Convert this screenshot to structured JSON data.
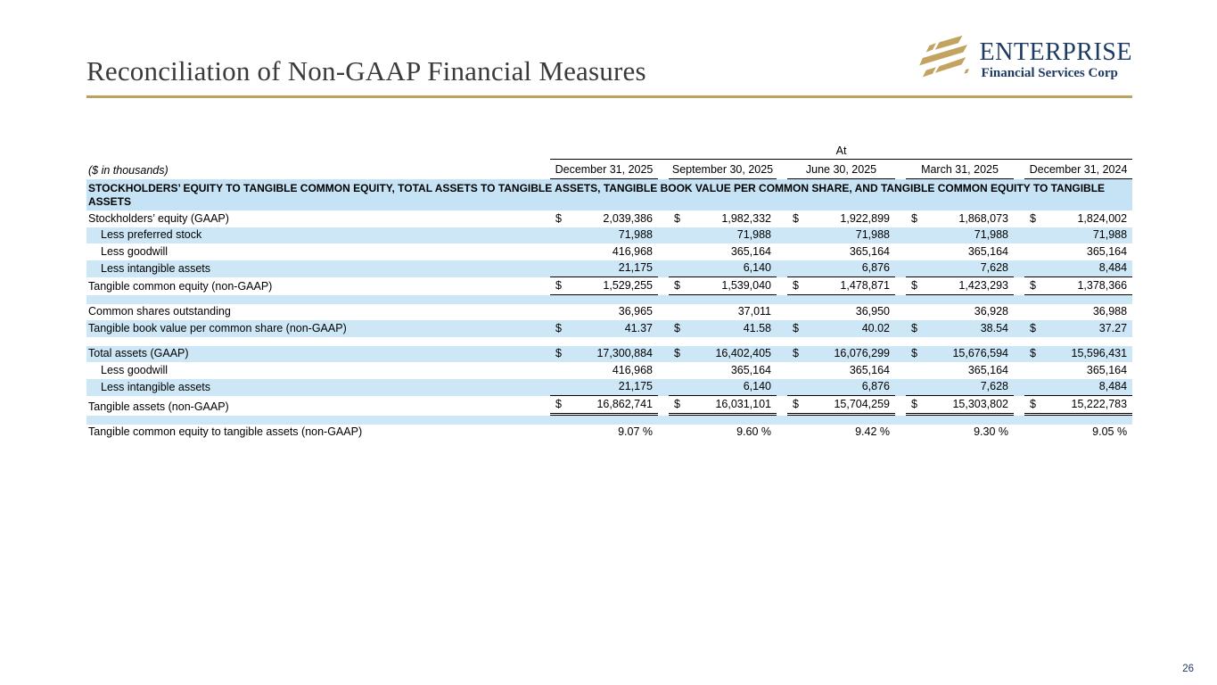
{
  "page": {
    "title": "Reconciliation of Non-GAAP Financial Measures",
    "page_number": "26"
  },
  "logo": {
    "name": "ENTERPRISE",
    "subtitle": "Financial Services Corp"
  },
  "colors": {
    "accent_gold": "#bda15e",
    "brand_navy": "#1d3a63",
    "stripe_blue": "#cde7f7",
    "section_blue": "#c5e3f5"
  },
  "table": {
    "units_label": "($ in thousands)",
    "at_label": "At",
    "currency_symbol": "$",
    "columns": [
      "December 31, 2025",
      "September 30, 2025",
      "June 30, 2025",
      "March 31, 2025",
      "December 31, 2024"
    ],
    "rows": [
      {
        "type": "section",
        "label": "STOCKHOLDERS’ EQUITY TO TANGIBLE COMMON EQUITY, TOTAL ASSETS TO TANGIBLE ASSETS, TANGIBLE BOOK VALUE PER COMMON SHARE, AND TANGIBLE COMMON EQUITY TO TANGIBLE ASSETS"
      },
      {
        "type": "data",
        "label": "Stockholders’ equity (GAAP)",
        "indent": false,
        "dollar": true,
        "shade": false,
        "values": [
          "2,039,386",
          "1,982,332",
          "1,922,899",
          "1,868,073",
          "1,824,002"
        ]
      },
      {
        "type": "data",
        "label": "Less preferred stock",
        "indent": true,
        "dollar": false,
        "shade": true,
        "values": [
          "71,988",
          "71,988",
          "71,988",
          "71,988",
          "71,988"
        ]
      },
      {
        "type": "data",
        "label": "Less goodwill",
        "indent": true,
        "dollar": false,
        "shade": false,
        "values": [
          "416,968",
          "365,164",
          "365,164",
          "365,164",
          "365,164"
        ]
      },
      {
        "type": "data",
        "label": "Less intangible assets",
        "indent": true,
        "dollar": false,
        "shade": true,
        "rule": "bottom",
        "values": [
          "21,175",
          "6,140",
          "6,876",
          "7,628",
          "8,484"
        ]
      },
      {
        "type": "data",
        "label": "Tangible common equity (non-GAAP)",
        "indent": false,
        "dollar": true,
        "shade": false,
        "rule": "bottom",
        "values": [
          "1,529,255",
          "1,539,040",
          "1,478,871",
          "1,423,293",
          "1,378,366"
        ]
      },
      {
        "type": "spacer",
        "shade": true
      },
      {
        "type": "data",
        "label": "Common shares outstanding",
        "indent": false,
        "dollar": false,
        "shade": false,
        "values": [
          "36,965",
          "37,011",
          "36,950",
          "36,928",
          "36,988"
        ]
      },
      {
        "type": "data",
        "label": "Tangible book value per common share (non-GAAP)",
        "indent": false,
        "dollar": true,
        "shade": true,
        "values": [
          "41.37",
          "41.58",
          "40.02",
          "38.54",
          "37.27"
        ]
      },
      {
        "type": "spacer",
        "shade": false
      },
      {
        "type": "data",
        "label": "Total assets (GAAP)",
        "indent": false,
        "dollar": true,
        "shade": true,
        "values": [
          "17,300,884",
          "16,402,405",
          "16,076,299",
          "15,676,594",
          "15,596,431"
        ]
      },
      {
        "type": "data",
        "label": "Less goodwill",
        "indent": true,
        "dollar": false,
        "shade": false,
        "values": [
          "416,968",
          "365,164",
          "365,164",
          "365,164",
          "365,164"
        ]
      },
      {
        "type": "data",
        "label": "Less intangible assets",
        "indent": true,
        "dollar": false,
        "shade": true,
        "rule": "bottom",
        "values": [
          "21,175",
          "6,140",
          "6,876",
          "7,628",
          "8,484"
        ]
      },
      {
        "type": "data",
        "label": "Tangible assets (non-GAAP)",
        "indent": false,
        "dollar": true,
        "shade": false,
        "rule": "double-bottom",
        "values": [
          "16,862,741",
          "16,031,101",
          "15,704,259",
          "15,303,802",
          "15,222,783"
        ]
      },
      {
        "type": "spacer",
        "shade": true
      },
      {
        "type": "data",
        "label": "Tangible common equity to tangible assets (non-GAAP)",
        "indent": false,
        "dollar": false,
        "shade": false,
        "values": [
          "9.07 %",
          "9.60 %",
          "9.42 %",
          "9.30 %",
          "9.05 %"
        ]
      }
    ]
  }
}
